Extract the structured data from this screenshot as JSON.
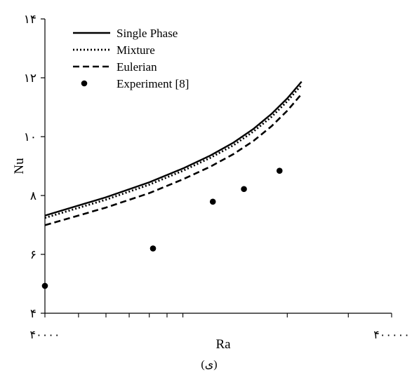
{
  "chart_data": {
    "type": "line",
    "title": "",
    "caption": "(ی)",
    "xlabel": "Ra",
    "ylabel": "Nu",
    "x_scale": "log",
    "xlim": [
      40000,
      400000
    ],
    "ylim": [
      4,
      14
    ],
    "x_tick_labels": [
      "۴۰۰۰۰",
      "۴۰۰۰۰۰"
    ],
    "y_ticks": [
      4,
      6,
      8,
      10,
      12,
      14
    ],
    "y_tick_labels": [
      "۴",
      "۶",
      "۸",
      "۱۰",
      "۱۲",
      "۱۴"
    ],
    "grid": false,
    "legend_position": "top-left",
    "series": [
      {
        "name": "Single Phase",
        "style": "solid",
        "x": [
          40000,
          60000,
          80000,
          100000,
          120000,
          140000,
          160000,
          180000,
          200000,
          220000
        ],
        "y": [
          7.32,
          7.94,
          8.45,
          8.92,
          9.36,
          9.8,
          10.27,
          10.77,
          11.3,
          11.87
        ]
      },
      {
        "name": "Mixture",
        "style": "dotted",
        "x": [
          40000,
          60000,
          80000,
          100000,
          120000,
          140000,
          160000,
          180000,
          200000,
          220000
        ],
        "y": [
          7.24,
          7.86,
          8.37,
          8.84,
          9.28,
          9.71,
          10.18,
          10.67,
          11.2,
          11.76
        ]
      },
      {
        "name": "Eulerian",
        "style": "dashed",
        "x": [
          40000,
          60000,
          80000,
          100000,
          120000,
          140000,
          160000,
          180000,
          200000,
          220000
        ],
        "y": [
          6.99,
          7.59,
          8.08,
          8.55,
          8.98,
          9.41,
          9.86,
          10.35,
          10.88,
          11.45
        ]
      },
      {
        "name": "Experiment [8]",
        "style": "markers",
        "x": [
          40000,
          82000,
          122000,
          150000,
          190000
        ],
        "y": [
          4.93,
          6.2,
          7.79,
          8.22,
          8.84
        ]
      }
    ]
  }
}
